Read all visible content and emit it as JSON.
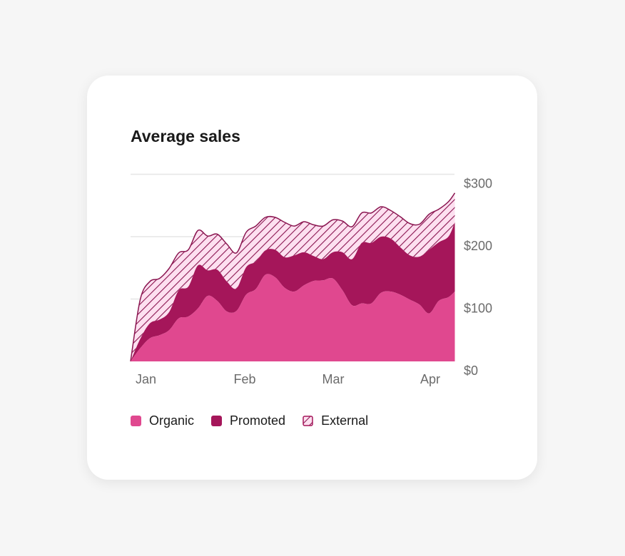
{
  "chart_data": {
    "type": "area",
    "stacked": true,
    "title": "Average sales",
    "xlabel": "",
    "ylabel": "",
    "ylim": [
      0,
      300
    ],
    "y_ticks": [
      "$0",
      "$100",
      "$200",
      "$300"
    ],
    "y_tick_values": [
      0,
      100,
      200,
      300
    ],
    "x_ticks": [
      "Jan",
      "Feb",
      "Mar",
      "Apr"
    ],
    "y_axis_position": "right",
    "grid": true,
    "legend_position": "bottom-left",
    "x": [
      "Jan 1",
      "Jan 4",
      "Jan 7",
      "Jan 10",
      "Jan 13",
      "Jan 16",
      "Jan 19",
      "Jan 22",
      "Jan 25",
      "Jan 28",
      "Jan 31",
      "Feb 3",
      "Feb 6",
      "Feb 9",
      "Feb 12",
      "Feb 15",
      "Feb 18",
      "Feb 21",
      "Feb 24",
      "Feb 27",
      "Mar 2",
      "Mar 5",
      "Mar 8",
      "Mar 11",
      "Mar 14",
      "Mar 17",
      "Mar 20",
      "Mar 23",
      "Mar 26",
      "Mar 29",
      "Apr 1",
      "Apr 4",
      "Apr 7",
      "Apr 10",
      "Apr 12"
    ],
    "series": [
      {
        "name": "Organic",
        "color": "#e0488f",
        "pattern": "solid",
        "values": [
          0,
          21,
          37,
          42,
          50,
          69,
          72,
          85,
          105,
          97,
          80,
          81,
          107,
          116,
          139,
          135,
          118,
          112,
          122,
          129,
          130,
          133,
          114,
          90,
          93,
          93,
          110,
          112,
          107,
          99,
          91,
          77,
          97,
          103,
          112
        ]
      },
      {
        "name": "Promoted",
        "color": "#a5165a",
        "pattern": "solid",
        "values": [
          0,
          15,
          24,
          25,
          29,
          45,
          48,
          69,
          41,
          50,
          48,
          36,
          44,
          44,
          39,
          44,
          49,
          58,
          53,
          40,
          34,
          42,
          61,
          74,
          97,
          97,
          90,
          85,
          76,
          71,
          77,
          102,
          94,
          97,
          111
        ]
      },
      {
        "name": "External",
        "color": "#8a1550",
        "fill": "#fde0f0",
        "pattern": "hatched",
        "values": [
          0,
          63,
          67,
          66,
          70,
          60,
          59,
          56,
          55,
          57,
          60,
          57,
          56,
          57,
          53,
          52,
          56,
          47,
          49,
          50,
          53,
          52,
          50,
          52,
          48,
          48,
          48,
          45,
          49,
          51,
          52,
          57,
          53,
          56,
          47
        ]
      }
    ]
  }
}
